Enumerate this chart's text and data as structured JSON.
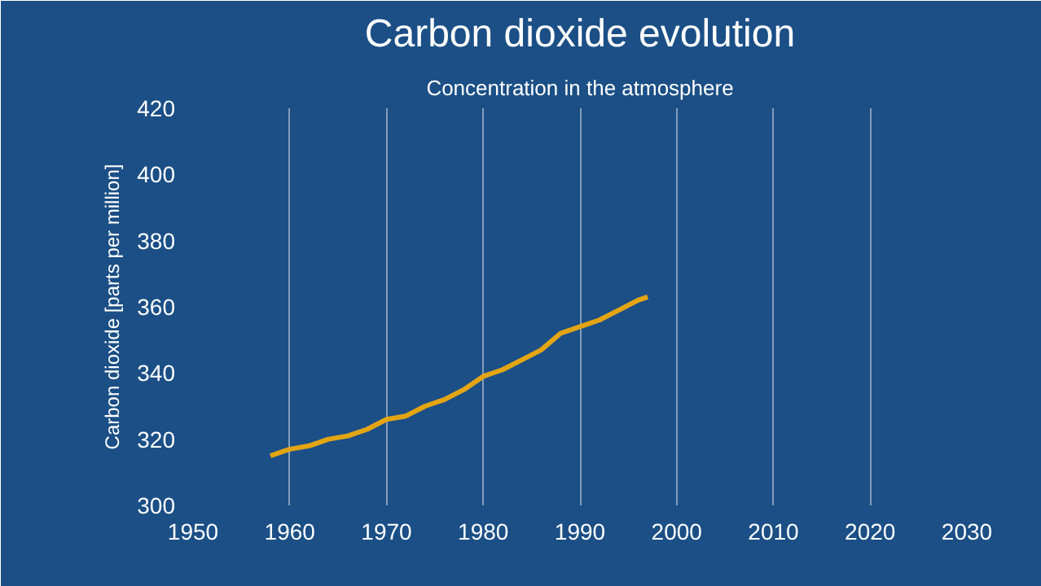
{
  "chart_data": {
    "type": "line",
    "title": "Carbon dioxide evolution",
    "subtitle": "Concentration in the atmosphere",
    "ylabel": "Carbon dioxide [parts per million]",
    "x": [
      1958,
      1960,
      1962,
      1964,
      1966,
      1968,
      1970,
      1972,
      1974,
      1976,
      1978,
      1980,
      1982,
      1984,
      1986,
      1988,
      1990,
      1992,
      1994,
      1996,
      1997
    ],
    "series": [
      {
        "color": "#e3a514",
        "values": [
          315,
          317,
          318,
          320,
          321,
          323,
          326,
          327,
          330,
          332,
          335,
          339,
          341,
          344,
          347,
          352,
          354,
          356,
          359,
          362,
          363
        ]
      }
    ],
    "xlim": [
      1950,
      2030
    ],
    "xticks": [
      1950,
      1960,
      1970,
      1980,
      1990,
      2000,
      2010,
      2020,
      2030
    ],
    "ylim": [
      300,
      420
    ],
    "yticks": [
      300,
      320,
      340,
      360,
      380,
      400,
      420
    ],
    "grid": "x",
    "marker": "none",
    "line_style": "solid"
  }
}
